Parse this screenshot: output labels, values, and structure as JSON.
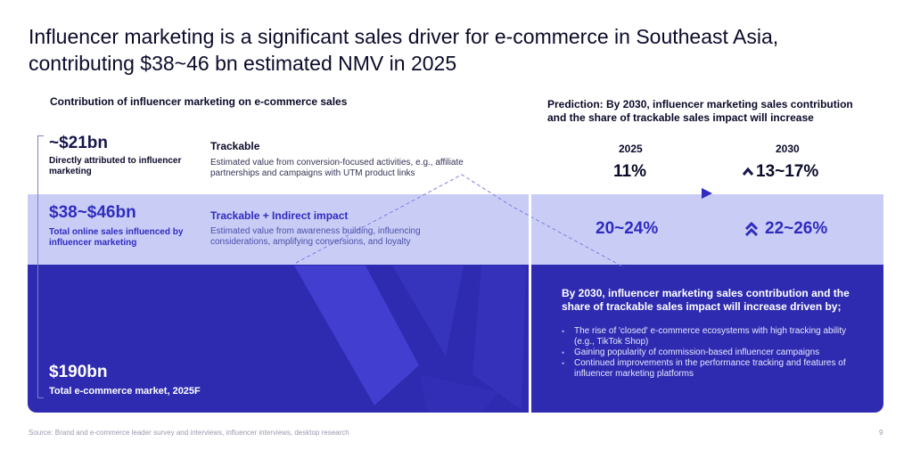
{
  "title": "Influencer marketing is a significant sales driver for e-commerce in Southeast Asia, contributing $38~46 bn estimated NMV in 2025",
  "left_header": "Contribution of influencer marketing on e-commerce sales",
  "right_header": "Prediction: By 2030, influencer marketing sales contribution and the share of trackable sales impact will increase",
  "tiers": [
    {
      "value": "~$21bn",
      "label": "Directly attributed to influencer marketing",
      "type_title": "Trackable",
      "type_desc": "Estimated value from conversion-focused activities, e.g., affiliate partnerships and campaigns with UTM product links"
    },
    {
      "value": "$38~$46bn",
      "label": "Total online sales influenced by influencer marketing",
      "type_title": "Trackable + Indirect impact",
      "type_desc": "Estimated value from awareness building, influencing considerations, amplifying conversions, and loyalty"
    },
    {
      "value": "$190bn",
      "label": "Total e-commerce market, 2025F"
    }
  ],
  "prediction": {
    "years": [
      "2025",
      "2030"
    ],
    "rows": [
      {
        "v2025": "11%",
        "v2030": "13~17%"
      },
      {
        "v2025": "20~24%",
        "v2030": "22~26%"
      }
    ]
  },
  "drivers": {
    "title": "By 2030, influencer marketing sales contribution and the share of trackable sales impact will increase driven by;",
    "items": [
      "The rise of 'closed' e-commerce ecosystems with high tracking ability (e.g., TikTok Shop)",
      "Gaining popularity of commission-based influencer campaigns",
      "Continued improvements in the performance tracking and features of influencer marketing platforms"
    ]
  },
  "footer": {
    "source": "Source: Brand and e-commerce leader survey and interviews, influencer interviews, desktop research",
    "page": "9"
  },
  "colors": {
    "accent": "#2f2cc0",
    "light_band": "#c9cdf6",
    "dark_band": "#2e2bb0"
  }
}
